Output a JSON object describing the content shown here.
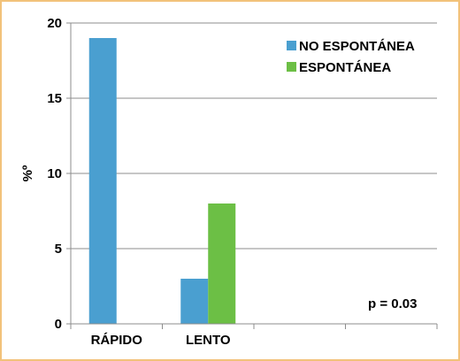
{
  "chart_data": {
    "type": "bar",
    "categories": [
      "RÁPIDO",
      "LENTO",
      "",
      ""
    ],
    "series": [
      {
        "name": "NO ESPONTÁNEA",
        "color": "#4a9fd0",
        "values": [
          19,
          3,
          null,
          null
        ]
      },
      {
        "name": "ESPONTÁNEA",
        "color": "#6cbf45",
        "values": [
          0,
          8,
          null,
          null
        ]
      }
    ],
    "ylabel": "%º",
    "ylim": [
      0,
      20
    ],
    "yticks": [
      "0",
      "5",
      "10",
      "15",
      "20"
    ],
    "grid": true,
    "legend_position": "top-right",
    "annotation": "p = 0.03"
  }
}
